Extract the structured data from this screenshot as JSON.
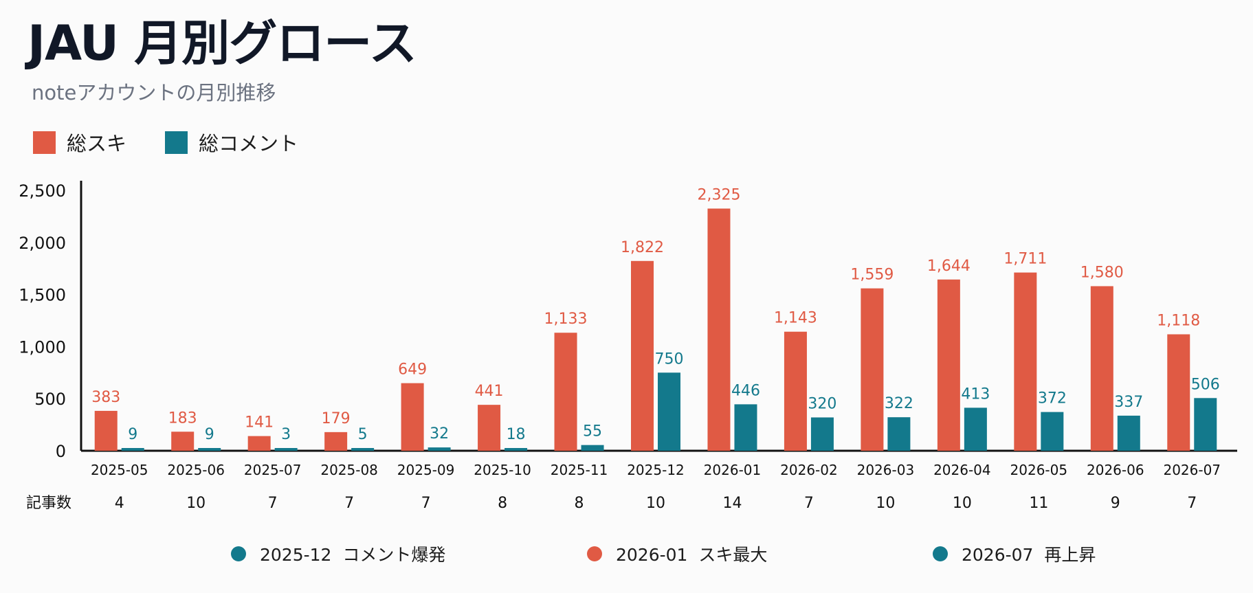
{
  "title": "JAU 月別グロース",
  "subtitle": "noteアカウントの月別推移",
  "colors": {
    "likes": "#e05a44",
    "comments": "#13798c"
  },
  "chart_data": {
    "type": "bar",
    "categories": [
      "2025-05",
      "2025-06",
      "2025-07",
      "2025-08",
      "2025-09",
      "2025-10",
      "2025-11",
      "2025-12",
      "2026-01",
      "2026-02",
      "2026-03",
      "2026-04",
      "2026-05",
      "2026-06",
      "2026-07"
    ],
    "series": [
      {
        "name": "総スキ",
        "color": "#e05a44",
        "values": [
          383,
          183,
          141,
          179,
          649,
          441,
          1133,
          1822,
          2325,
          1143,
          1559,
          1644,
          1711,
          1580,
          1118
        ]
      },
      {
        "name": "総コメント",
        "color": "#13798c",
        "values": [
          9,
          9,
          3,
          5,
          32,
          18,
          55,
          750,
          446,
          320,
          322,
          413,
          372,
          337,
          506
        ]
      }
    ],
    "y_ticks": [
      "0",
      "500",
      "1,000",
      "1,500",
      "2,000",
      "2,500"
    ],
    "ylim": [
      0,
      2750
    ],
    "legend": "top-left",
    "grid": false,
    "article_row": {
      "label": "記事数",
      "values": [
        "4",
        "10",
        "7",
        "7",
        "7",
        "8",
        "8",
        "10",
        "14",
        "7",
        "10",
        "10",
        "11",
        "9",
        "7"
      ]
    }
  },
  "annotations": [
    {
      "label": "2025-12  コメント爆発",
      "color": "#13798c"
    },
    {
      "label": "2026-01  スキ最大",
      "color": "#e05a44"
    },
    {
      "label": "2026-07  再上昇",
      "color": "#13798c"
    }
  ]
}
